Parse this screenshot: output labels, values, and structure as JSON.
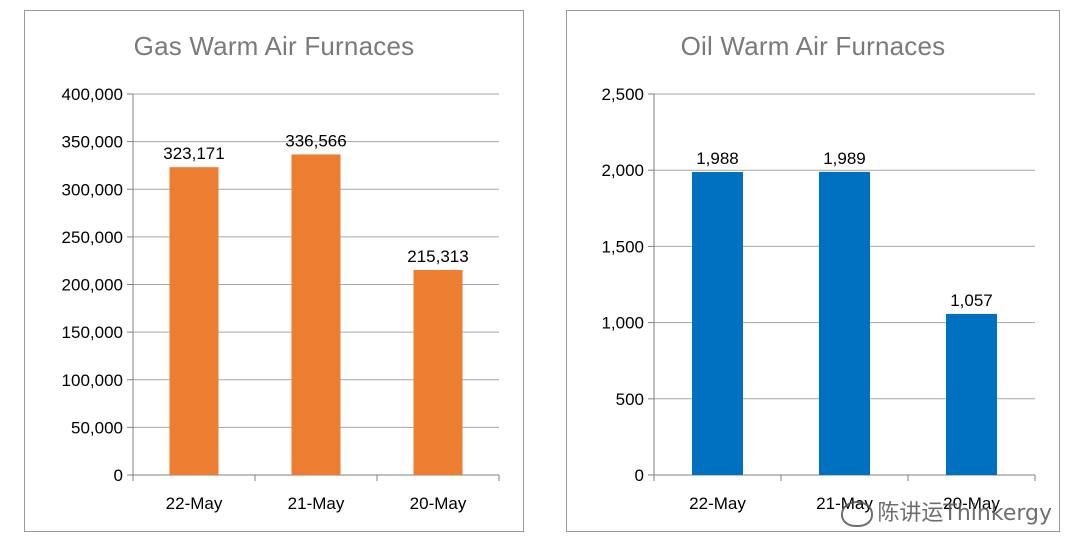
{
  "chart_data": [
    {
      "type": "bar",
      "title": "Gas Warm Air Furnaces",
      "categories": [
        "22-May",
        "21-May",
        "20-May"
      ],
      "values": [
        323171,
        336566,
        215313
      ],
      "data_labels": [
        "323,171",
        "336,566",
        "215,313"
      ],
      "ylim": [
        0,
        400000
      ],
      "yticks": [
        0,
        50000,
        100000,
        150000,
        200000,
        250000,
        300000,
        350000,
        400000
      ],
      "ytick_labels": [
        "0",
        "50,000",
        "100,000",
        "150,000",
        "200,000",
        "250,000",
        "300,000",
        "350,000",
        "400,000"
      ],
      "grid": true,
      "color": "#ED7D31",
      "xlabel": "",
      "ylabel": ""
    },
    {
      "type": "bar",
      "title": "Oil Warm Air Furnaces",
      "categories": [
        "22-May",
        "21-May",
        "20-May"
      ],
      "values": [
        1988,
        1989,
        1057
      ],
      "data_labels": [
        "1,988",
        "1,989",
        "1,057"
      ],
      "ylim": [
        0,
        2500
      ],
      "yticks": [
        0,
        500,
        1000,
        1500,
        2000,
        2500
      ],
      "ytick_labels": [
        "0",
        "500",
        "1,000",
        "1,500",
        "2,000",
        "2,500"
      ],
      "grid": true,
      "color": "#0070C0",
      "xlabel": "",
      "ylabel": ""
    }
  ],
  "watermark": "陈讲运Thinkergy"
}
